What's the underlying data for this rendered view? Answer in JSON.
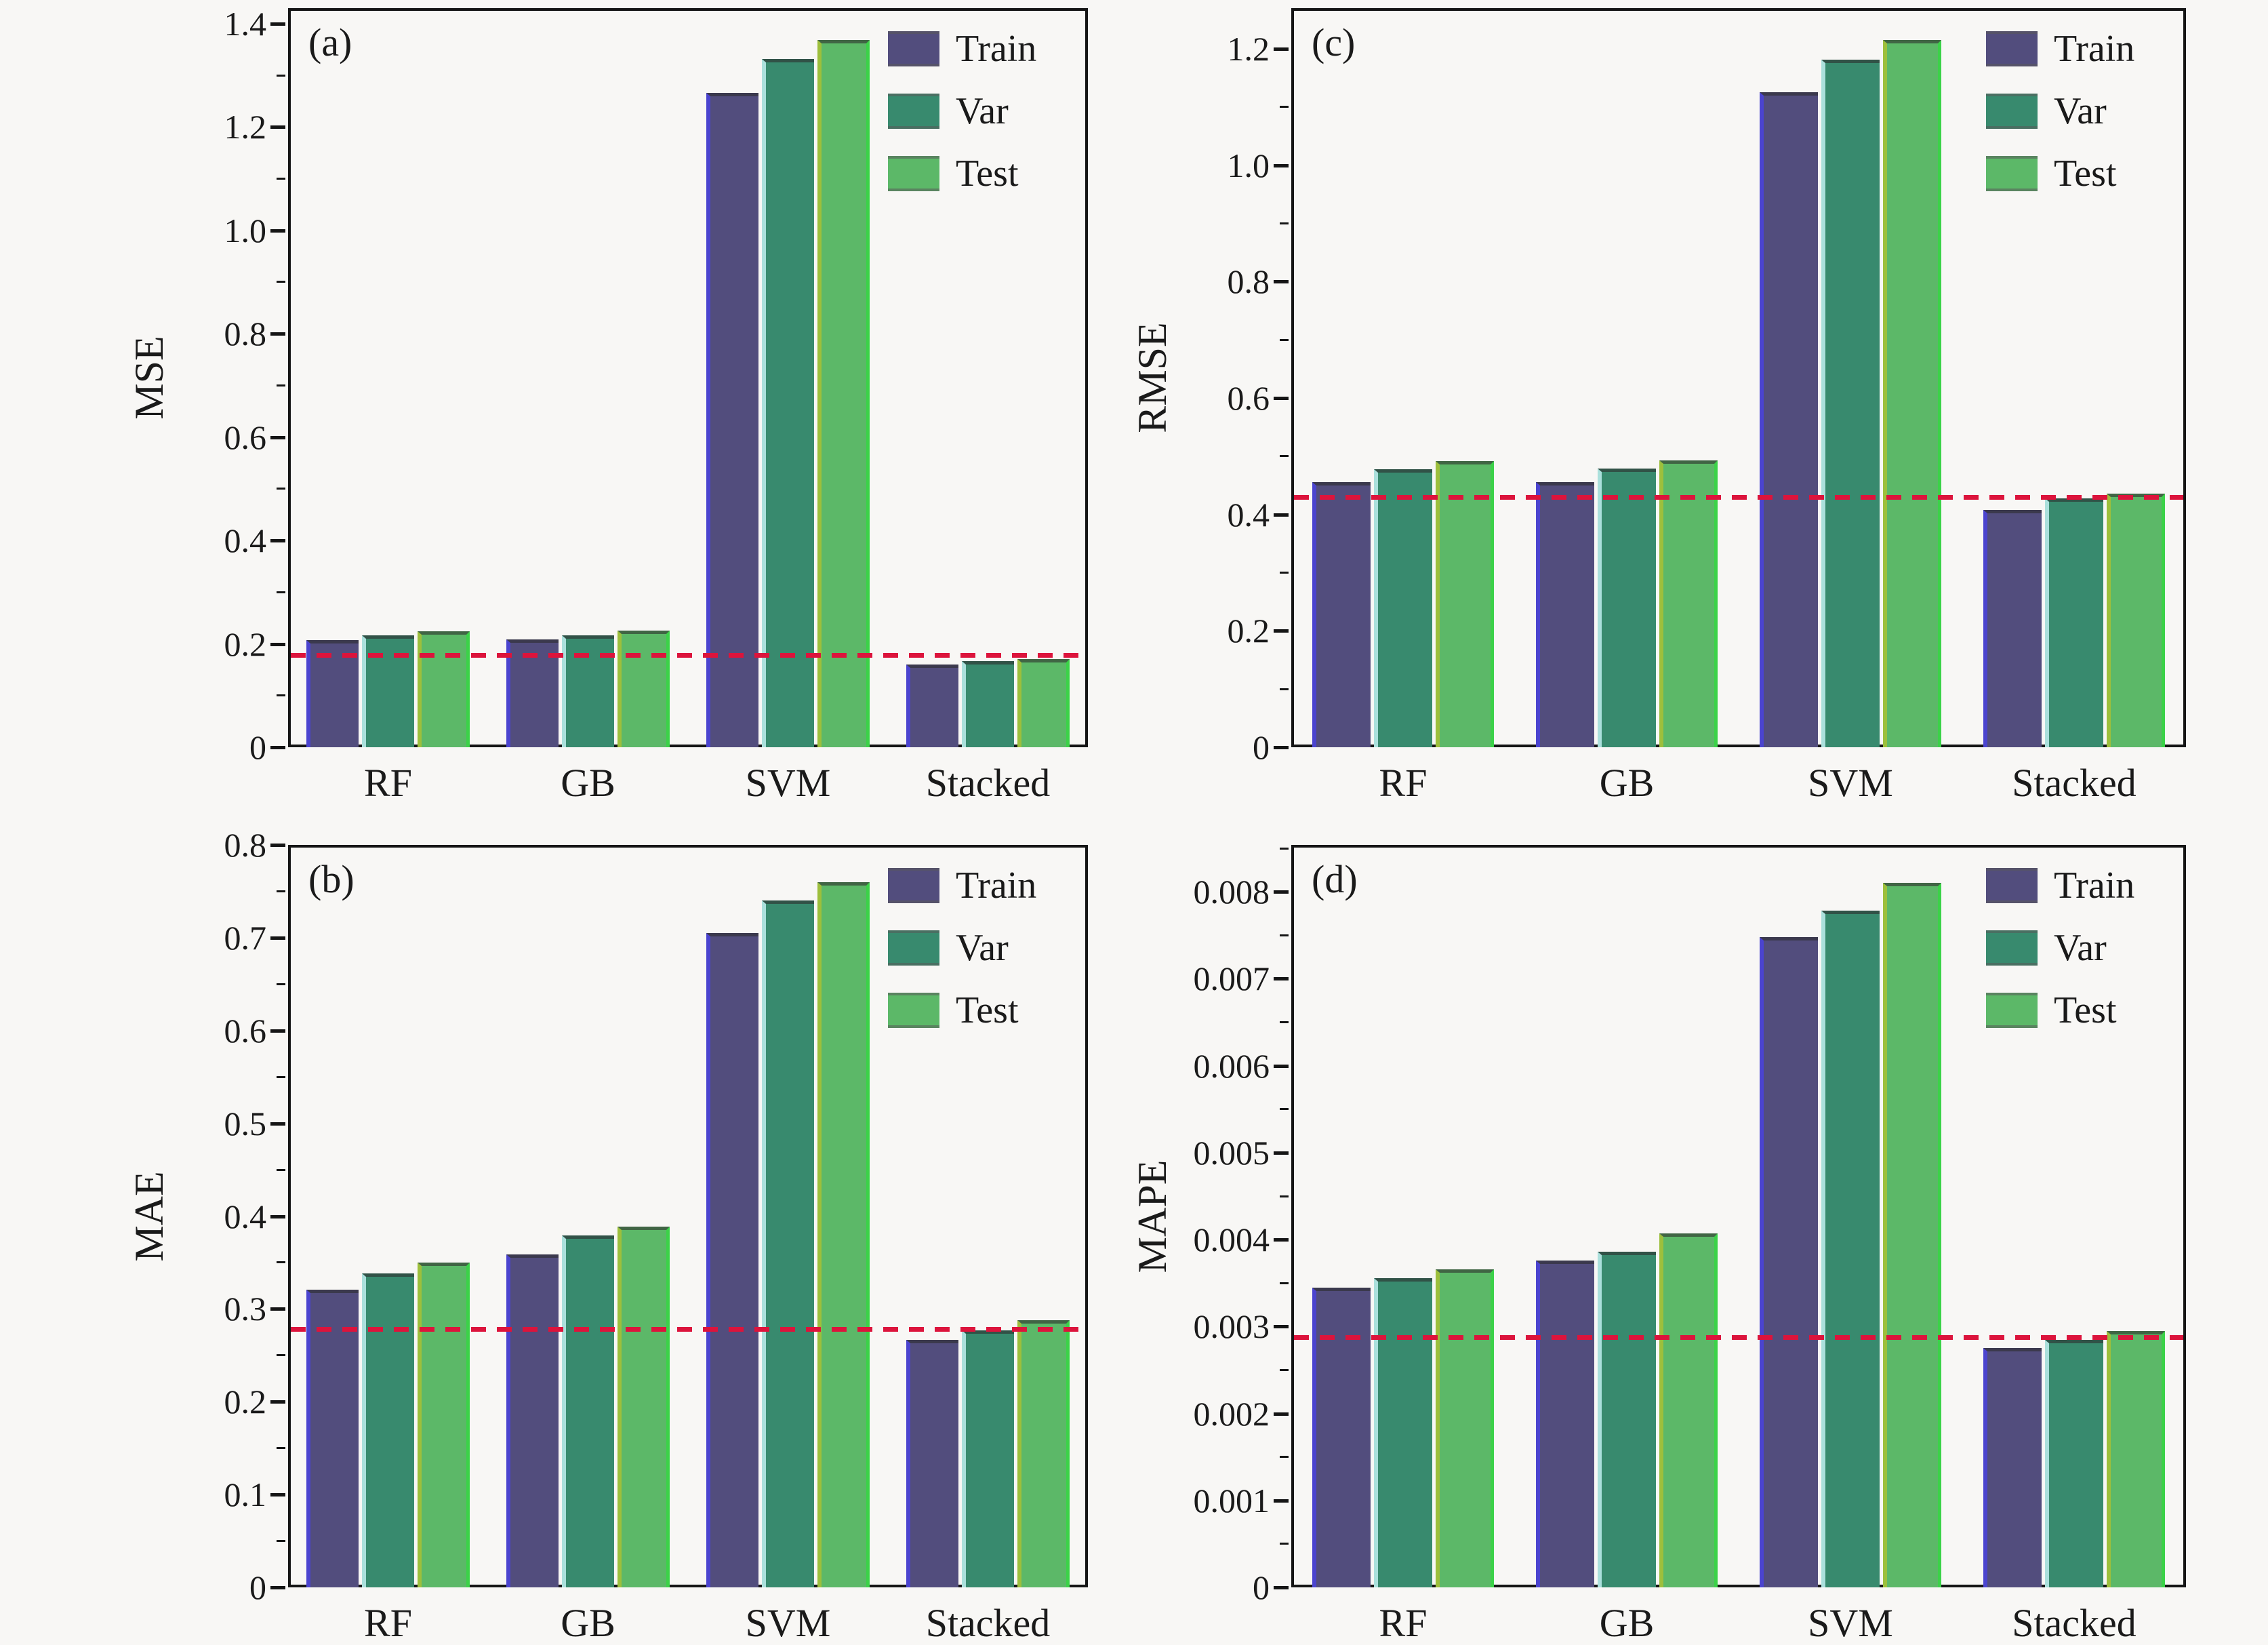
{
  "figure": {
    "background": "#f8f7f5",
    "series_colors": {
      "train": "#524d7d",
      "var": "#388a6e",
      "test": "#5cb868"
    },
    "reference_line_color": "#dc143c"
  },
  "chart_data": [
    {
      "id": "a",
      "type": "bar",
      "grid_position": "top-left",
      "letter": "(a)",
      "ylabel": "MSE",
      "xlabel": "",
      "ylim": [
        0,
        1.43
      ],
      "grid": false,
      "legend_position": "upper-right",
      "major_tick_step": 0.2,
      "minor_tick_step": 0.1,
      "yticks": [
        {
          "v": 0,
          "label": "0"
        },
        {
          "v": 0.2,
          "label": "0.2"
        },
        {
          "v": 0.4,
          "label": "0.4"
        },
        {
          "v": 0.6,
          "label": "0.6"
        },
        {
          "v": 0.8,
          "label": "0.8"
        },
        {
          "v": 1.0,
          "label": "1.0"
        },
        {
          "v": 1.2,
          "label": "1.2"
        },
        {
          "v": 1.4,
          "label": "1.4"
        }
      ],
      "categories": [
        "RF",
        "GB",
        "SVM",
        "Stacked"
      ],
      "series": [
        {
          "name": "Train",
          "color": "#524d7d",
          "edge_left": "#4b44cf",
          "values": [
            0.207,
            0.208,
            1.266,
            0.16
          ]
        },
        {
          "name": "Var",
          "color": "#388a6e",
          "edge_left": "#abe0dc",
          "values": [
            0.216,
            0.217,
            1.331,
            0.167
          ]
        },
        {
          "name": "Test",
          "color": "#5cb868",
          "edge_left": "#9dbf3c",
          "edge_right": "#3bd248",
          "values": [
            0.224,
            0.226,
            1.368,
            0.171
          ]
        }
      ],
      "hline": {
        "value": 0.178,
        "color": "#dc143c",
        "style": "dashed"
      }
    },
    {
      "id": "c",
      "type": "bar",
      "grid_position": "top-right",
      "letter": "(c)",
      "ylabel": "RMSE",
      "xlabel": "",
      "ylim": [
        0,
        1.27
      ],
      "grid": false,
      "legend_position": "upper-right",
      "major_tick_step": 0.2,
      "minor_tick_step": 0.1,
      "yticks": [
        {
          "v": 0,
          "label": "0"
        },
        {
          "v": 0.2,
          "label": "0.2"
        },
        {
          "v": 0.4,
          "label": "0.4"
        },
        {
          "v": 0.6,
          "label": "0.6"
        },
        {
          "v": 0.8,
          "label": "0.8"
        },
        {
          "v": 1.0,
          "label": "1.0"
        },
        {
          "v": 1.2,
          "label": "1.2"
        }
      ],
      "categories": [
        "RF",
        "GB",
        "SVM",
        "Stacked"
      ],
      "series": [
        {
          "name": "Train",
          "color": "#524d7d",
          "edge_left": "#4b44cf",
          "values": [
            0.455,
            0.456,
            1.125,
            0.408
          ]
        },
        {
          "name": "Var",
          "color": "#388a6e",
          "edge_left": "#abe0dc",
          "values": [
            0.478,
            0.479,
            1.182,
            0.428
          ]
        },
        {
          "name": "Test",
          "color": "#5cb868",
          "edge_left": "#9dbf3c",
          "edge_right": "#3bd248",
          "values": [
            0.492,
            0.493,
            1.215,
            0.436
          ]
        }
      ],
      "hline": {
        "value": 0.43,
        "color": "#dc143c",
        "style": "dashed"
      }
    },
    {
      "id": "b",
      "type": "bar",
      "grid_position": "bottom-left",
      "letter": "(b)",
      "ylabel": "MAE",
      "xlabel": "",
      "ylim": [
        0,
        0.8
      ],
      "grid": false,
      "legend_position": "upper-right",
      "major_tick_step": 0.1,
      "minor_tick_step": 0.05,
      "yticks": [
        {
          "v": 0,
          "label": "0"
        },
        {
          "v": 0.1,
          "label": "0.1"
        },
        {
          "v": 0.2,
          "label": "0.2"
        },
        {
          "v": 0.3,
          "label": "0.3"
        },
        {
          "v": 0.4,
          "label": "0.4"
        },
        {
          "v": 0.5,
          "label": "0.5"
        },
        {
          "v": 0.6,
          "label": "0.6"
        },
        {
          "v": 0.7,
          "label": "0.7"
        },
        {
          "v": 0.8,
          "label": "0.8"
        }
      ],
      "categories": [
        "RF",
        "GB",
        "SVM",
        "Stacked"
      ],
      "series": [
        {
          "name": "Train",
          "color": "#524d7d",
          "edge_left": "#4b44cf",
          "values": [
            0.321,
            0.359,
            0.705,
            0.267
          ]
        },
        {
          "name": "Var",
          "color": "#388a6e",
          "edge_left": "#abe0dc",
          "values": [
            0.338,
            0.379,
            0.74,
            0.277
          ]
        },
        {
          "name": "Test",
          "color": "#5cb868",
          "edge_left": "#9dbf3c",
          "edge_right": "#3bd248",
          "values": [
            0.35,
            0.389,
            0.76,
            0.288
          ]
        }
      ],
      "hline": {
        "value": 0.278,
        "color": "#dc143c",
        "style": "dashed"
      }
    },
    {
      "id": "d",
      "type": "bar",
      "grid_position": "bottom-right",
      "letter": "(d)",
      "ylabel": "MAPE",
      "xlabel": "",
      "ylim": [
        0,
        0.00854
      ],
      "grid": false,
      "legend_position": "upper-right",
      "major_tick_step": 0.001,
      "minor_tick_step": 0.0005,
      "yticks": [
        {
          "v": 0,
          "label": "0"
        },
        {
          "v": 0.001,
          "label": "0.001"
        },
        {
          "v": 0.002,
          "label": "0.002"
        },
        {
          "v": 0.003,
          "label": "0.003"
        },
        {
          "v": 0.004,
          "label": "0.004"
        },
        {
          "v": 0.005,
          "label": "0.005"
        },
        {
          "v": 0.006,
          "label": "0.006"
        },
        {
          "v": 0.007,
          "label": "0.007"
        },
        {
          "v": 0.008,
          "label": "0.008"
        }
      ],
      "categories": [
        "RF",
        "GB",
        "SVM",
        "Stacked"
      ],
      "series": [
        {
          "name": "Train",
          "color": "#524d7d",
          "edge_left": "#4b44cf",
          "values": [
            0.00345,
            0.00376,
            0.00748,
            0.00275
          ]
        },
        {
          "name": "Var",
          "color": "#388a6e",
          "edge_left": "#abe0dc",
          "values": [
            0.00356,
            0.00386,
            0.00778,
            0.00285
          ]
        },
        {
          "name": "Test",
          "color": "#5cb868",
          "edge_left": "#9dbf3c",
          "edge_right": "#3bd248",
          "values": [
            0.00366,
            0.00407,
            0.0081,
            0.00295
          ]
        }
      ],
      "hline": {
        "value": 0.00288,
        "color": "#dc143c",
        "style": "dashed"
      }
    }
  ],
  "legend": {
    "labels": [
      "Train",
      "Var",
      "Test"
    ]
  }
}
